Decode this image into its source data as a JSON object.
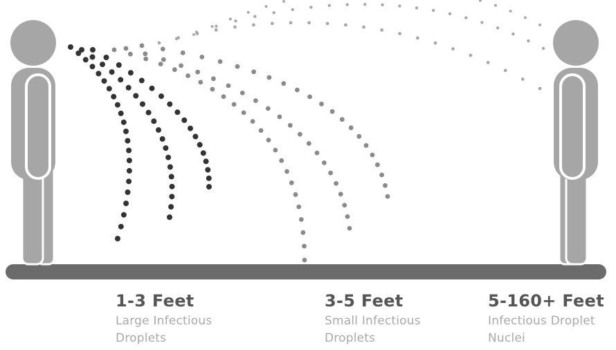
{
  "zones": [
    {
      "title": "1-3 Feet",
      "desc_line1": "Large Infectious",
      "desc_line2": "Droplets"
    },
    {
      "title": "3-5 Feet",
      "desc_line1": "Small Infectious",
      "desc_line2": "Droplets"
    },
    {
      "title": "5-160+ Feet",
      "desc_line1": "Infectious Droplet",
      "desc_line2": "Nuclei"
    }
  ],
  "colors": {
    "figure": "#a6a6a6",
    "figure_outline": "#ffffff",
    "floor": "#6b6b6d",
    "large_droplets": "#333333",
    "small_droplets": "#8a8a8a",
    "nuclei_droplets": "#a8a8a8",
    "title_text": "#555555",
    "desc_text": "#a9a9a9"
  },
  "icons": [
    "person-left-icon",
    "person-right-icon"
  ]
}
